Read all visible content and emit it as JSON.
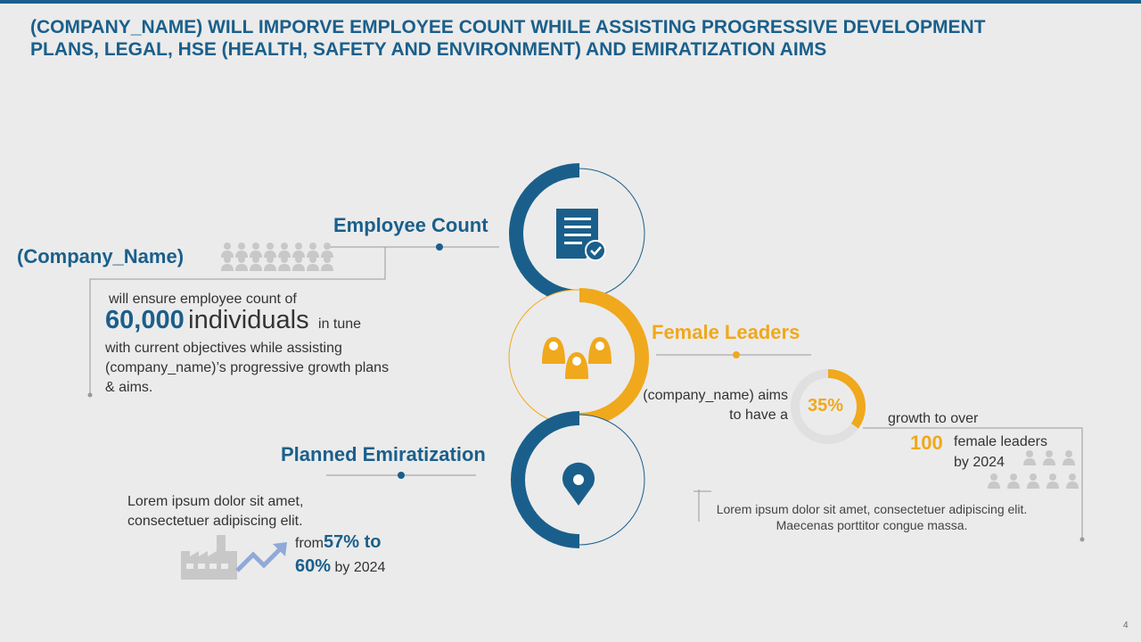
{
  "title": "(COMPANY_NAME) WILL IMPORVE EMPLOYEE COUNT WHILE ASSISTING PROGRESSIVE DEVELOPMENT PLANS, LEGAL, HSE (HEALTH, SAFETY AND ENVIRONMENT) AND EMIRATIZATION AIMS",
  "colors": {
    "blue": "#1a5f8b",
    "gold": "#f0a81c",
    "gray": "#bbbbbb"
  },
  "employee": {
    "heading": "Employee Count",
    "company": "(Company_Name)",
    "line1": "will ensure employee count of",
    "number": "60,000",
    "unit": "individuals",
    "tail": "in tune",
    "desc": "with current objectives while assisting (company_name)’s progressive growth plans & aims.",
    "icon": "document-check-icon"
  },
  "female": {
    "heading": "Female Leaders",
    "lead": "(company_name) aims to have a",
    "percent": "35%",
    "percent_value": 0.35,
    "growth": "growth to over",
    "count": "100",
    "suffix1": "female leaders",
    "suffix2": "by 2024",
    "note": "Lorem ipsum dolor sit amet, consectetuer adipiscing elit. Maecenas porttitor congue massa.",
    "icon": "female-leaders-icon"
  },
  "emiratization": {
    "heading": "Planned Emiratization",
    "text": "Lorem ipsum dolor sit amet, consectetuer adipiscing elit.",
    "from": "from",
    "from_pct": "57% to",
    "to_pct": "60%",
    "by": "by 2024",
    "icon": "location-pin-icon"
  },
  "page_number": "4"
}
